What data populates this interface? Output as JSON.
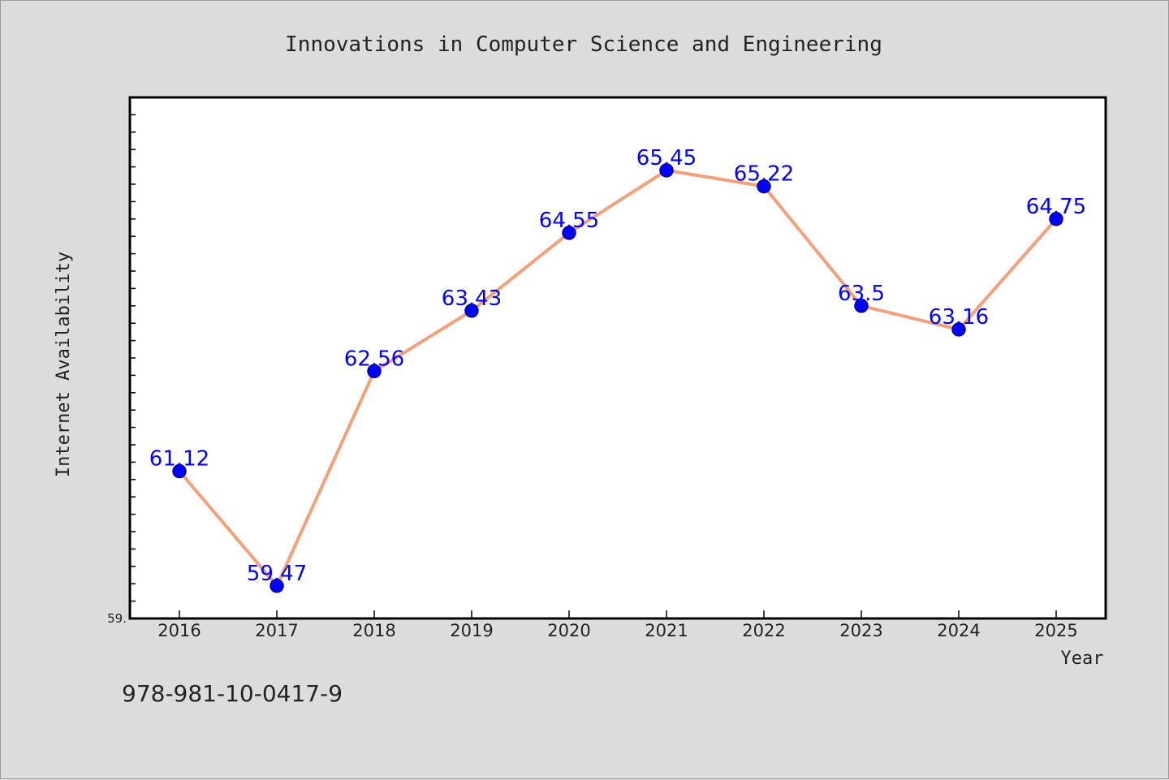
{
  "figure": {
    "footer_text": "978-981-10-0417-9"
  },
  "chart_data": {
    "type": "line",
    "title": "Innovations in Computer Science and Engineering",
    "xlabel": "Year",
    "ylabel": "Internet Availability",
    "categories": [
      "2016",
      "2017",
      "2018",
      "2019",
      "2020",
      "2021",
      "2022",
      "2023",
      "2024",
      "2025"
    ],
    "series": [
      {
        "values": [
          61.12,
          59.47,
          62.56,
          63.43,
          64.55,
          65.45,
          65.22,
          63.5,
          63.16,
          64.75
        ],
        "data_labels": [
          "61.12",
          "59.47",
          "62.56",
          "63.43",
          "64.55",
          "65.45",
          "65.22",
          "63.5",
          "63.16",
          "64.75"
        ]
      }
    ],
    "ylim": [
      59.0,
      66.5
    ],
    "y_tick_step": 0.25,
    "y_tick_labels": [
      {
        "value": 59.0,
        "text": "59."
      }
    ],
    "grid": false,
    "legend": "none",
    "colors": {
      "line": "#f4a07a",
      "marker_fill": "#0000ff",
      "marker_edge": "#00008b",
      "data_label": "#0000ff",
      "plot_background": "#ffffff",
      "figure_background": "#dcdcdc"
    }
  }
}
